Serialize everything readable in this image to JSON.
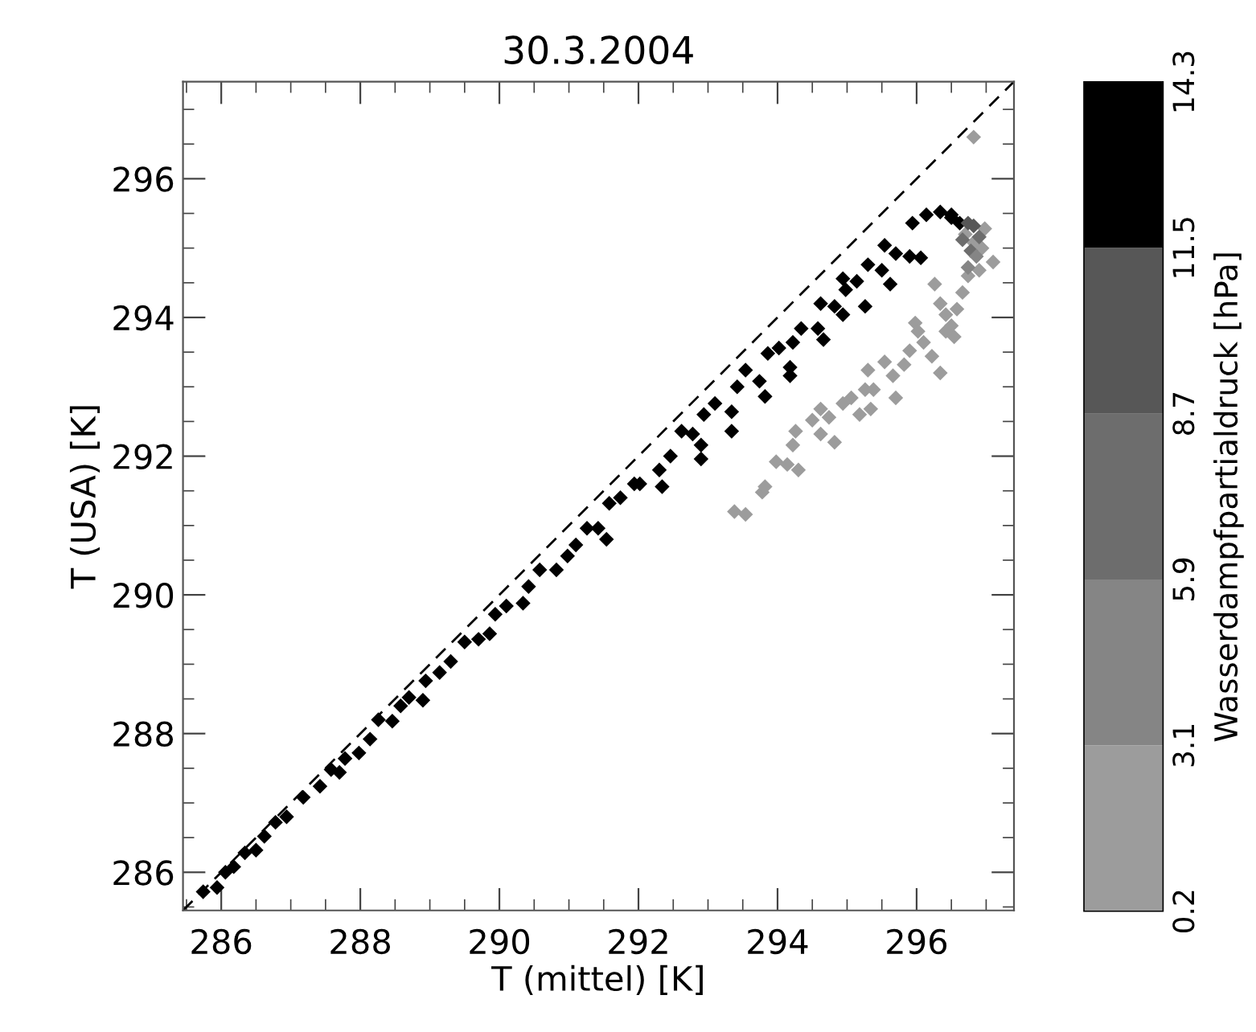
{
  "chart_data": {
    "type": "scatter",
    "title": "30.3.2004",
    "xlabel": "T (mittel) [K]",
    "ylabel": "T (USA) [K]",
    "clabel": "Wasserdampfpartialdruck [hPa]",
    "clim": [
      0.2,
      14.3
    ],
    "cticks": [
      0.2,
      3.1,
      5.9,
      8.7,
      11.5,
      14.3
    ],
    "xlim": [
      285.45,
      297.4
    ],
    "ylim": [
      285.45,
      297.4
    ],
    "xticks": [
      {
        "value": 285.5,
        "label": null
      },
      286,
      {
        "value": 286.5,
        "label": null
      },
      {
        "value": 287,
        "label": null
      },
      {
        "value": 287.5,
        "label": null
      },
      288,
      {
        "value": 288.5,
        "label": null
      },
      {
        "value": 289,
        "label": null
      },
      {
        "value": 289.5,
        "label": null
      },
      290,
      {
        "value": 290.5,
        "label": null
      },
      {
        "value": 291,
        "label": null
      },
      {
        "value": 291.5,
        "label": null
      },
      292,
      {
        "value": 292.5,
        "label": null
      },
      {
        "value": 293,
        "label": null
      },
      {
        "value": 293.5,
        "label": null
      },
      294,
      {
        "value": 294.5,
        "label": null
      },
      {
        "value": 295,
        "label": null
      },
      {
        "value": 295.5,
        "label": null
      },
      296,
      {
        "value": 296.5,
        "label": null
      },
      {
        "value": 297,
        "label": null
      }
    ],
    "yticks": [
      {
        "value": 285.5,
        "label": null
      },
      286,
      {
        "value": 286.5,
        "label": null
      },
      {
        "value": 287,
        "label": null
      },
      {
        "value": 287.5,
        "label": null
      },
      288,
      {
        "value": 288.5,
        "label": null
      },
      {
        "value": 289,
        "label": null
      },
      {
        "value": 289.5,
        "label": null
      },
      290,
      {
        "value": 290.5,
        "label": null
      },
      {
        "value": 291,
        "label": null
      },
      {
        "value": 291.5,
        "label": null
      },
      292,
      {
        "value": 292.5,
        "label": null
      },
      {
        "value": 293,
        "label": null
      },
      {
        "value": 293.5,
        "label": null
      },
      294,
      {
        "value": 294.5,
        "label": null
      },
      {
        "value": 295,
        "label": null
      },
      {
        "value": 295.5,
        "label": null
      },
      296,
      {
        "value": 296.5,
        "label": null
      },
      {
        "value": 297,
        "label": null
      }
    ],
    "grid": false,
    "legend": false,
    "marker": "diamond",
    "series": [
      {
        "type": "line",
        "color": "#000000",
        "line_style": "dashed",
        "marker": "none",
        "x": [
          285.45,
          297.4
        ],
        "values": [
          285.45,
          297.4
        ]
      },
      {
        "color": "#000000",
        "x": [
          285.74,
          285.94,
          286.06,
          286.18,
          286.34,
          286.5,
          286.62,
          286.78,
          286.94,
          287.18,
          287.42,
          287.58,
          287.7,
          287.78,
          287.98,
          288.14,
          288.26,
          288.46,
          288.58,
          288.7,
          288.9,
          288.94,
          289.14,
          289.3,
          289.5,
          289.7,
          289.86,
          289.94,
          290.1,
          290.34,
          290.42,
          290.58,
          290.82,
          290.98,
          291.1,
          291.26,
          291.42,
          291.54,
          291.58,
          291.74,
          291.94,
          292.02,
          292.3,
          292.34,
          292.46,
          292.62,
          292.78,
          292.9,
          292.9,
          292.94,
          293.1,
          293.34,
          293.34,
          293.42,
          293.54,
          293.74,
          293.82,
          293.86,
          294.02,
          294.18,
          294.18,
          294.22,
          294.34,
          294.58,
          294.66,
          294.62,
          294.82,
          294.94,
          294.94,
          294.98,
          295.14,
          295.26,
          295.3,
          295.5,
          295.62,
          295.54,
          295.7,
          295.9,
          296.06,
          295.94,
          296.14,
          296.34,
          296.5,
          296.62,
          296.5
        ],
        "values": [
          285.72,
          285.78,
          286.0,
          286.08,
          286.28,
          286.32,
          286.52,
          286.72,
          286.8,
          287.08,
          287.24,
          287.48,
          287.44,
          287.64,
          287.72,
          287.92,
          288.2,
          288.18,
          288.4,
          288.52,
          288.48,
          288.76,
          288.88,
          289.04,
          289.32,
          289.36,
          289.44,
          289.72,
          289.84,
          289.88,
          290.12,
          290.36,
          290.36,
          290.56,
          290.72,
          290.96,
          290.96,
          290.8,
          291.32,
          291.4,
          291.6,
          291.6,
          291.8,
          291.56,
          292.0,
          292.36,
          292.32,
          292.16,
          291.96,
          292.6,
          292.76,
          292.64,
          292.36,
          293.0,
          293.24,
          293.08,
          292.86,
          293.48,
          293.56,
          293.28,
          293.16,
          293.64,
          293.84,
          293.84,
          293.68,
          294.2,
          294.16,
          294.04,
          294.56,
          294.4,
          294.52,
          294.16,
          294.76,
          294.68,
          294.48,
          295.04,
          294.92,
          294.88,
          294.86,
          295.36,
          295.48,
          295.52,
          295.44,
          295.36,
          295.48
        ]
      },
      {
        "color": "#9c9c9c",
        "x": [
          293.38,
          293.54,
          293.78,
          293.82,
          293.98,
          294.14,
          294.3,
          294.22,
          294.26,
          294.5,
          294.62,
          294.62,
          294.82,
          294.74,
          294.94,
          295.06,
          295.18,
          295.34,
          295.26,
          295.3,
          295.38,
          295.54,
          295.66,
          295.7,
          295.82,
          295.9,
          295.98,
          296.1,
          296.22,
          296.02,
          296.34,
          296.26,
          296.34,
          296.42,
          296.5,
          296.54,
          296.58,
          296.42,
          296.66,
          296.74,
          296.82,
          297.1,
          296.9,
          296.94,
          296.98,
          296.7,
          296.82
        ],
        "values": [
          291.2,
          291.16,
          291.48,
          291.56,
          291.92,
          291.88,
          291.8,
          292.16,
          292.36,
          292.52,
          292.68,
          292.32,
          292.2,
          292.56,
          292.76,
          292.84,
          292.6,
          292.68,
          292.96,
          293.24,
          292.96,
          293.36,
          293.16,
          292.84,
          293.32,
          293.52,
          293.92,
          293.64,
          293.44,
          293.8,
          293.2,
          294.48,
          294.2,
          294.04,
          293.88,
          293.72,
          294.12,
          293.8,
          294.36,
          294.6,
          296.6,
          294.8,
          294.68,
          295.0,
          295.28,
          295.2,
          295.08
        ]
      },
      {
        "colors": [
          "#575757",
          "#575757",
          "#6d6d6d",
          "#6d6d6d",
          "#858585",
          "#858585",
          "#6d6d6d"
        ],
        "x": [
          296.74,
          296.82,
          296.66,
          296.78,
          296.86,
          296.74,
          296.9
        ],
        "values": [
          295.36,
          295.32,
          295.12,
          294.96,
          294.88,
          294.72,
          295.16
        ]
      }
    ]
  }
}
